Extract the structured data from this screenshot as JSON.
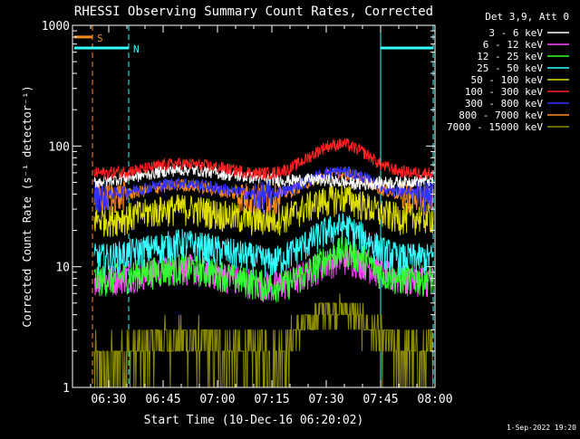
{
  "chart_data": {
    "type": "line",
    "title": "RHESSI Observing Summary Count Rates, Corrected",
    "xlabel": "Start Time (10-Dec-16 06:20:02)",
    "ylabel": "Corrected Count Rate (s⁻¹ detector⁻¹)",
    "ylim": [
      1,
      1000
    ],
    "yscale": "log",
    "xlim_minutes": [
      20,
      120
    ],
    "x_ticks": [
      {
        "m": 30,
        "label": "06:30"
      },
      {
        "m": 45,
        "label": "06:45"
      },
      {
        "m": 60,
        "label": "07:00"
      },
      {
        "m": 75,
        "label": "07:15"
      },
      {
        "m": 90,
        "label": "07:30"
      },
      {
        "m": 105,
        "label": "07:45"
      },
      {
        "m": 120,
        "label": "08:00"
      }
    ],
    "y_ticks": [
      {
        "v": 1,
        "label": "1"
      },
      {
        "v": 10,
        "label": "10"
      },
      {
        "v": 100,
        "label": "100"
      },
      {
        "v": 1000,
        "label": "1000"
      }
    ],
    "legend_title": "Det 3,9, Att 0",
    "x": [
      25,
      30,
      35,
      40,
      45,
      50,
      55,
      60,
      65,
      70,
      75,
      80,
      85,
      90,
      95,
      100,
      105,
      110,
      115
    ],
    "series": [
      {
        "name": "3 - 6 keV",
        "color": "#ffffff",
        "values": [
          50,
          52,
          55,
          58,
          62,
          64,
          63,
          60,
          57,
          55,
          53,
          52,
          53,
          52,
          50,
          48,
          50,
          50,
          52
        ]
      },
      {
        "name": "6 - 12 keV",
        "color": "#ff44ff",
        "values": [
          8,
          8,
          8.5,
          9,
          9.5,
          10,
          9.5,
          9,
          8,
          7.5,
          7,
          7.5,
          9,
          11,
          12,
          11,
          9,
          8,
          8
        ]
      },
      {
        "name": "12 - 25 keV",
        "color": "#33ff33",
        "values": [
          8,
          8,
          8.5,
          9,
          9.5,
          10,
          9.5,
          9,
          8,
          7.5,
          7,
          7.5,
          9,
          12,
          14,
          12,
          9,
          8,
          8
        ]
      },
      {
        "name": "25 - 50 keV",
        "color": "#33ffff",
        "values": [
          12,
          12,
          13,
          14,
          15,
          16,
          15,
          14,
          13,
          12,
          11,
          13,
          16,
          20,
          22,
          18,
          14,
          12,
          12
        ]
      },
      {
        "name": "50 - 100 keV",
        "color": "#dddd00",
        "values": [
          25,
          25,
          26,
          28,
          30,
          31,
          30,
          28,
          26,
          25,
          25,
          27,
          32,
          36,
          38,
          33,
          28,
          26,
          26
        ]
      },
      {
        "name": "100 - 300 keV",
        "color": "#ff2222",
        "values": [
          60,
          60,
          62,
          65,
          70,
          72,
          70,
          67,
          63,
          60,
          60,
          65,
          80,
          100,
          105,
          90,
          70,
          62,
          60
        ]
      },
      {
        "name": "300 - 800 keV",
        "color": "#3333ff",
        "values": [
          40,
          40,
          42,
          45,
          48,
          50,
          48,
          45,
          42,
          40,
          40,
          44,
          52,
          60,
          62,
          56,
          46,
          42,
          40
        ]
      },
      {
        "name": "800 - 7000 keV",
        "color": "#ff8c1a",
        "values": [
          38,
          38,
          40,
          43,
          46,
          48,
          46,
          43,
          40,
          38,
          38,
          42,
          50,
          58,
          60,
          54,
          44,
          40,
          38
        ]
      },
      {
        "name": "7000 - 15000 keV",
        "color": "#8b8b00",
        "values": [
          1.5,
          1.5,
          2,
          2,
          2.5,
          2.5,
          2.5,
          2,
          2,
          2,
          1.8,
          2.5,
          3.5,
          4.5,
          4.5,
          3.5,
          2.5,
          2,
          1.8
        ]
      }
    ],
    "flags": [
      {
        "label": "S",
        "color": "#ff8c1a",
        "x_start": 20.5,
        "x_end": 25.5,
        "y": 800
      },
      {
        "label": "N",
        "color": "#33ffff",
        "x_start": 20.5,
        "x_end": 35.5,
        "y": 650
      },
      {
        "label": "",
        "color": "#33ffff",
        "x_start": 105,
        "x_end": 119.5,
        "y": 650
      }
    ],
    "vlines": [
      {
        "m": 25.5,
        "color": "#ff8c1a",
        "style": "dashed"
      },
      {
        "m": 35.5,
        "color": "#33ffff",
        "style": "dashed"
      },
      {
        "m": 105,
        "color": "#33ffff",
        "style": "solid"
      },
      {
        "m": 119.5,
        "color": "#33ffff",
        "style": "dashed"
      }
    ],
    "data_x_range": [
      26,
      119.5
    ],
    "grid": false,
    "legend_position": "top-right",
    "footer": "1-Sep-2022 19:20"
  }
}
